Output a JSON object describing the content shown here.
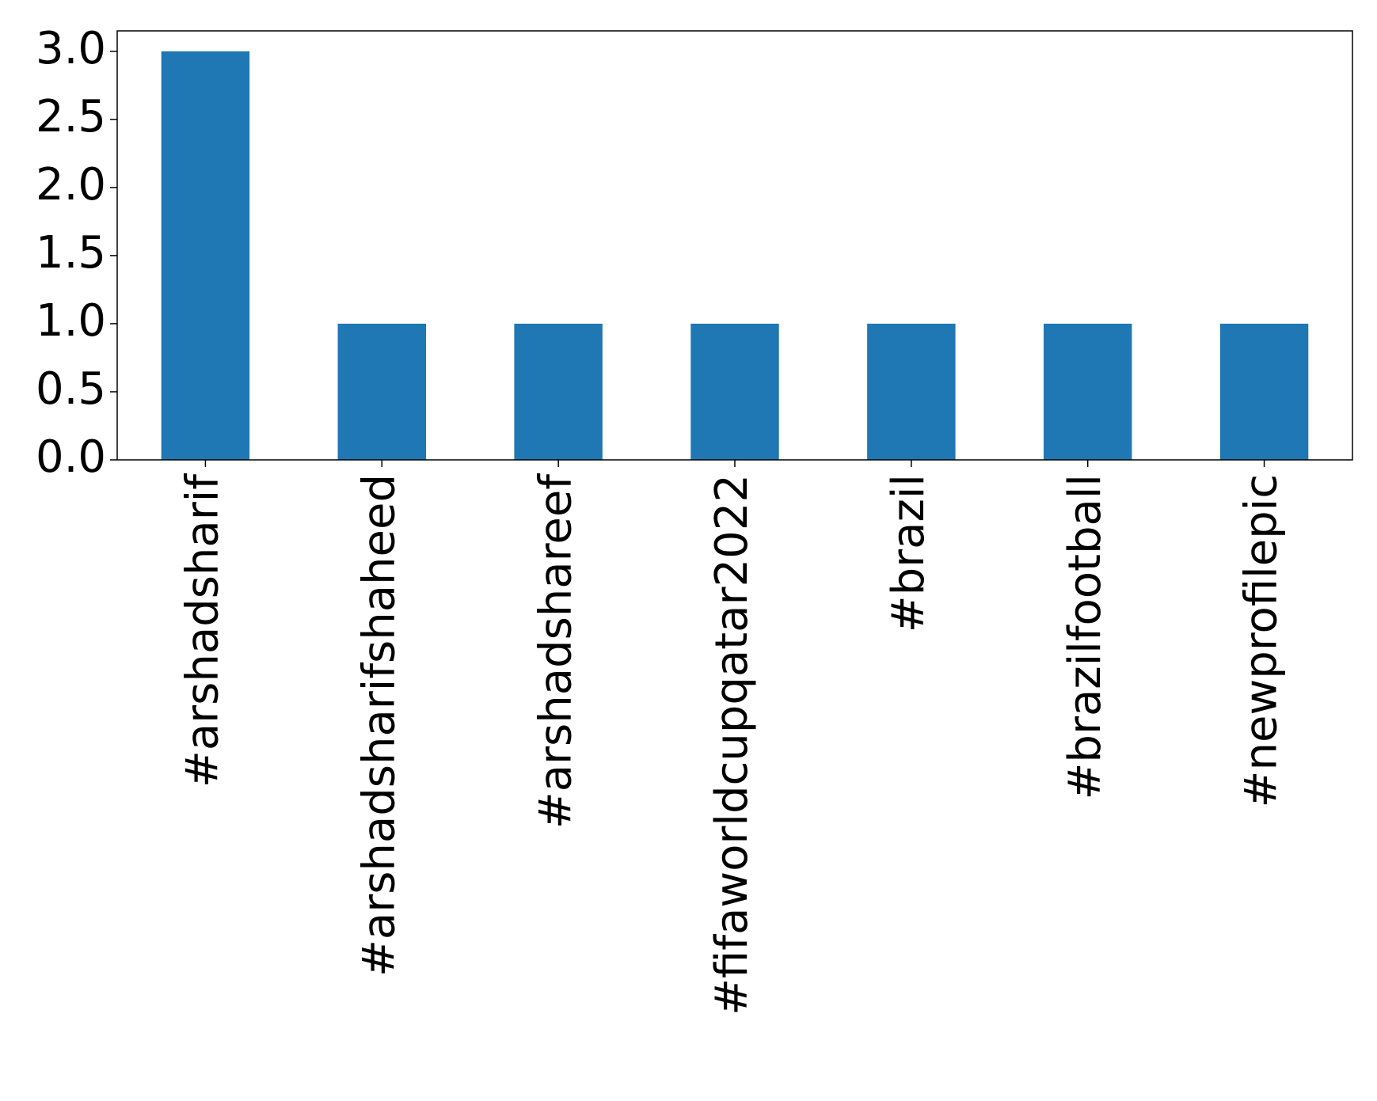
{
  "chart_data": {
    "type": "bar",
    "categories": [
      "#arshadsharif",
      "#arshadsharifshaheed",
      "#arshadshareef",
      "#fifaworldcupqatar2022",
      "#brazil",
      "#brazilfootball",
      "#newprofilepic"
    ],
    "values": [
      3,
      1,
      1,
      1,
      1,
      1,
      1
    ],
    "color": "#1f77b4",
    "ylim": [
      0,
      3.15
    ],
    "yticks": [
      {
        "value": 0,
        "label": "0.0"
      },
      0.5,
      {
        "value": 1,
        "label": "1.0"
      },
      1.5,
      {
        "value": 2,
        "label": "2.0"
      },
      2.5,
      {
        "value": 3,
        "label": "3.0"
      }
    ],
    "grid": false
  }
}
